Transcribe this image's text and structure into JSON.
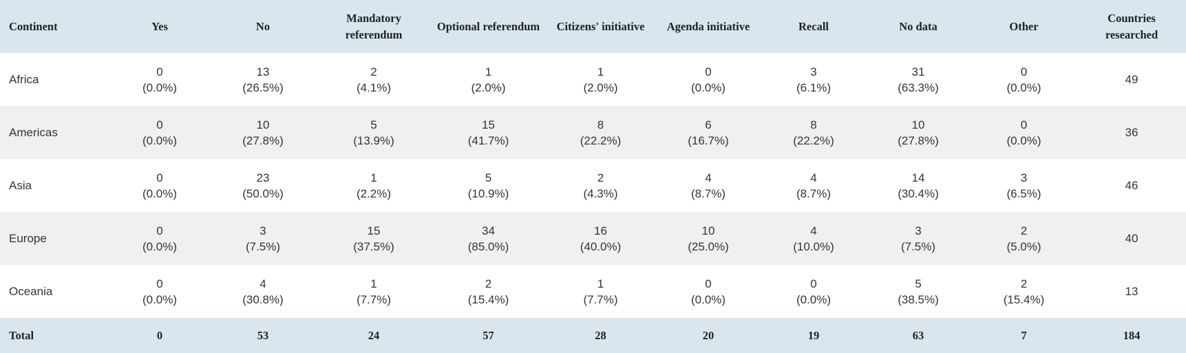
{
  "table": {
    "columns": [
      "Continent",
      "Yes",
      "No",
      "Mandatory referendum",
      "Optional referendum",
      "Citizens' initiative",
      "Agenda initiative",
      "Recall",
      "No data",
      "Other",
      "Countries researched"
    ],
    "rows": [
      [
        "Africa",
        [
          "0",
          "(0.0%)"
        ],
        [
          "13",
          "(26.5%)"
        ],
        [
          "2",
          "(4.1%)"
        ],
        [
          "1",
          "(2.0%)"
        ],
        [
          "1",
          "(2.0%)"
        ],
        [
          "0",
          "(0.0%)"
        ],
        [
          "3",
          "(6.1%)"
        ],
        [
          "31",
          "(63.3%)"
        ],
        [
          "0",
          "(0.0%)"
        ],
        "49"
      ],
      [
        "Americas",
        [
          "0",
          "(0.0%)"
        ],
        [
          "10",
          "(27.8%)"
        ],
        [
          "5",
          "(13.9%)"
        ],
        [
          "15",
          "(41.7%)"
        ],
        [
          "8",
          "(22.2%)"
        ],
        [
          "6",
          "(16.7%)"
        ],
        [
          "8",
          "(22.2%)"
        ],
        [
          "10",
          "(27.8%)"
        ],
        [
          "0",
          "(0.0%)"
        ],
        "36"
      ],
      [
        "Asia",
        [
          "0",
          "(0.0%)"
        ],
        [
          "23",
          "(50.0%)"
        ],
        [
          "1",
          "(2.2%)"
        ],
        [
          "5",
          "(10.9%)"
        ],
        [
          "2",
          "(4.3%)"
        ],
        [
          "4",
          "(8.7%)"
        ],
        [
          "4",
          "(8.7%)"
        ],
        [
          "14",
          "(30.4%)"
        ],
        [
          "3",
          "(6.5%)"
        ],
        "46"
      ],
      [
        "Europe",
        [
          "0",
          "(0.0%)"
        ],
        [
          "3",
          "(7.5%)"
        ],
        [
          "15",
          "(37.5%)"
        ],
        [
          "34",
          "(85.0%)"
        ],
        [
          "16",
          "(40.0%)"
        ],
        [
          "10",
          "(25.0%)"
        ],
        [
          "4",
          "(10.0%)"
        ],
        [
          "3",
          "(7.5%)"
        ],
        [
          "2",
          "(5.0%)"
        ],
        "40"
      ],
      [
        "Oceania",
        [
          "0",
          "(0.0%)"
        ],
        [
          "4",
          "(30.8%)"
        ],
        [
          "1",
          "(7.7%)"
        ],
        [
          "2",
          "(15.4%)"
        ],
        [
          "1",
          "(7.7%)"
        ],
        [
          "0",
          "(0.0%)"
        ],
        [
          "0",
          "(0.0%)"
        ],
        [
          "5",
          "(38.5%)"
        ],
        [
          "2",
          "(15.4%)"
        ],
        "13"
      ]
    ],
    "total": [
      "Total",
      "0",
      "53",
      "24",
      "57",
      "28",
      "20",
      "19",
      "63",
      "7",
      "184"
    ]
  }
}
